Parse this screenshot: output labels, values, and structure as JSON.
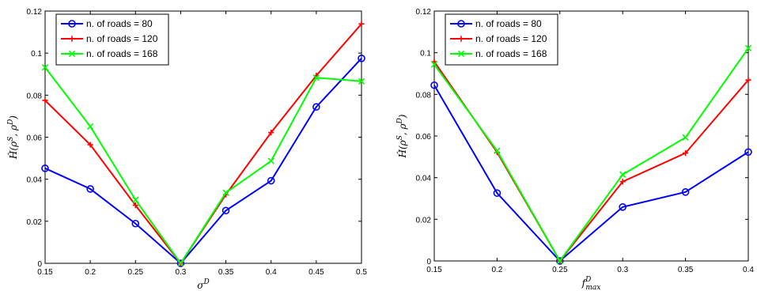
{
  "chart_data": [
    {
      "type": "line",
      "title": "",
      "xlabel_base": "σ",
      "xlabel_sup": "D",
      "xlabel_sub": "",
      "ylabel": "Ĥ(ρ^S, ρ^D)",
      "xlim": [
        0.15,
        0.5
      ],
      "ylim": [
        0,
        0.12
      ],
      "x": [
        0.15,
        0.2,
        0.25,
        0.3,
        0.35,
        0.4,
        0.45,
        0.5
      ],
      "x_ticks": [
        "0.15",
        "0.2",
        "0.25",
        "0.3",
        "0.35",
        "0.4",
        "0.45",
        "0.5"
      ],
      "y_ticks": [
        "0",
        "0.02",
        "0.04",
        "0.06",
        "0.08",
        "0.1",
        "0.12"
      ],
      "grid": false,
      "legend_position": "top-left",
      "series": [
        {
          "name": "n. of roads = 80",
          "color": "#0000ff",
          "marker": "circle",
          "values": [
            0.0452,
            0.0354,
            0.0189,
            0.0,
            0.0251,
            0.0393,
            0.0744,
            0.0975
          ]
        },
        {
          "name": "n. of roads = 120",
          "color": "#ff0000",
          "marker": "plus",
          "values": [
            0.0775,
            0.0564,
            0.0276,
            0.0,
            0.0327,
            0.0622,
            0.0893,
            0.1139
          ]
        },
        {
          "name": "n. of roads = 168",
          "color": "#00ff00",
          "marker": "x",
          "values": [
            0.0932,
            0.0651,
            0.0302,
            0.0,
            0.0336,
            0.0487,
            0.0883,
            0.0866
          ]
        }
      ]
    },
    {
      "type": "line",
      "title": "",
      "xlabel_base": "f",
      "xlabel_sup": "D",
      "xlabel_sub": "max",
      "ylabel": "Ĥ(ρ^S, ρ^D)",
      "xlim": [
        0.15,
        0.4
      ],
      "ylim": [
        0,
        0.12
      ],
      "x": [
        0.15,
        0.2,
        0.25,
        0.3,
        0.35,
        0.4
      ],
      "x_ticks": [
        "0.15",
        "0.2",
        "0.25",
        "0.3",
        "0.35",
        "0.4"
      ],
      "y_ticks": [
        "0",
        "0.02",
        "0.04",
        "0.06",
        "0.08",
        "0.1",
        "0.12"
      ],
      "grid": false,
      "legend_position": "top-left",
      "series": [
        {
          "name": "n. of roads = 80",
          "color": "#0000ff",
          "marker": "circle",
          "values": [
            0.0844,
            0.0326,
            0.0,
            0.0259,
            0.0331,
            0.0523
          ]
        },
        {
          "name": "n. of roads = 120",
          "color": "#ff0000",
          "marker": "plus",
          "values": [
            0.0957,
            0.0522,
            0.0,
            0.0381,
            0.0518,
            0.0869
          ]
        },
        {
          "name": "n. of roads = 168",
          "color": "#00ff00",
          "marker": "x",
          "values": [
            0.0944,
            0.0529,
            0.0,
            0.0415,
            0.0593,
            0.1022
          ]
        }
      ]
    }
  ]
}
